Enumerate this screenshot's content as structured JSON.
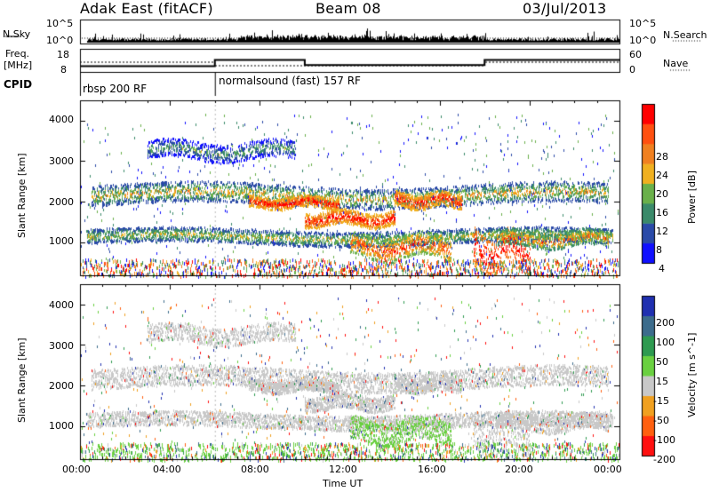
{
  "header": {
    "station": "Adak East (fitACF)",
    "beam": "Beam 08",
    "date": "03/Jul/2013"
  },
  "noise_panel": {
    "left_label": "N.Sky",
    "right_label": "N.Search",
    "left_ticks": [
      "10^5",
      "10^0"
    ],
    "right_ticks": [
      "10^5",
      "10^0"
    ]
  },
  "freq_panel": {
    "left_label_1": "Freq.",
    "left_label_2": "[MHz]",
    "right_label": "Nave",
    "left_ticks": [
      "18",
      "8"
    ],
    "right_ticks": [
      "60",
      "0"
    ],
    "freq_steps": [
      {
        "from": "00:00",
        "to": "06:00",
        "mhz": 10.5
      },
      {
        "from": "06:00",
        "to": "10:00",
        "mhz": 13.2
      },
      {
        "from": "10:00",
        "to": "18:00",
        "mhz": 11.0
      },
      {
        "from": "18:00",
        "to": "24:00",
        "mhz": 13.2
      }
    ]
  },
  "cpid": {
    "label": "CPID",
    "segments": [
      {
        "from": "00:00",
        "to": "06:00",
        "text": "rbsp 200 RF"
      },
      {
        "from": "06:00",
        "to": "24:00",
        "text": "normalsound (fast) 157 RF"
      }
    ]
  },
  "chart_data": [
    {
      "type": "heatmap",
      "panel": "power",
      "ylabel": "Slant Range [km]",
      "xlabel": "",
      "xlim": [
        "00:00",
        "24:00"
      ],
      "ylim": [
        180,
        4500
      ],
      "y_ticks": [
        "1000",
        "2000",
        "3000",
        "4000"
      ],
      "x_ticks": [
        "00:00",
        "04:00",
        "08:00",
        "12:00",
        "16:00",
        "20:00",
        "00:00"
      ],
      "colorbar": {
        "label": "Power [dB]",
        "ticks": [
          "4",
          "8",
          "12",
          "16",
          "20",
          "24",
          "28"
        ],
        "colors": [
          "#1010ff",
          "#2a4aa8",
          "#3a8a6a",
          "#6ab04a",
          "#f0b020",
          "#f08020",
          "#ff5010",
          "#ff0000"
        ]
      },
      "echo_bands": [
        {
          "name": "near-range",
          "t_start": 0.5,
          "t_end": 23.5,
          "range_km": [
            300,
            600
          ]
        },
        {
          "name": "band-1",
          "t_start": 0.2,
          "t_end": 23.8,
          "range_km": [
            950,
            1400
          ],
          "peak_db": 26
        },
        {
          "name": "band-2",
          "t_start": 0.5,
          "t_end": 23.5,
          "range_km": [
            1800,
            2500
          ],
          "peak_db": 28
        },
        {
          "name": "band-3",
          "t_start": 3.0,
          "t_end": 9.5,
          "range_km": [
            2900,
            3600
          ]
        },
        {
          "name": "spread-f",
          "t_start": 17.5,
          "t_end": 20.0,
          "range_km": [
            300,
            1500
          ],
          "peak_db": 30
        }
      ]
    },
    {
      "type": "heatmap",
      "panel": "velocity",
      "ylabel": "Slant Range [km]",
      "xlabel": "Time UT",
      "xlim": [
        "00:00",
        "24:00"
      ],
      "ylim": [
        180,
        4500
      ],
      "y_ticks": [
        "1000",
        "2000",
        "3000",
        "4000"
      ],
      "x_ticks": [
        "00:00",
        "04:00",
        "08:00",
        "12:00",
        "16:00",
        "20:00",
        "00:00"
      ],
      "colorbar": {
        "label": "Velocity [m s^-1]",
        "ticks": [
          "200",
          "100",
          "50",
          "15",
          "-15",
          "-50",
          "-100",
          "-200"
        ],
        "colors": [
          "#2030b0",
          "#3c6c8c",
          "#2e9a50",
          "#6ad040",
          "#c8c8c8",
          "#f0a020",
          "#ff6010",
          "#ff1010"
        ]
      },
      "features": [
        {
          "name": "ground-scatter",
          "velocity_ms": 0
        },
        {
          "name": "positive-flow",
          "t_start": 12.5,
          "t_end": 15.5,
          "range_km": [
            500,
            1200
          ],
          "velocity_ms": 40
        }
      ]
    }
  ]
}
